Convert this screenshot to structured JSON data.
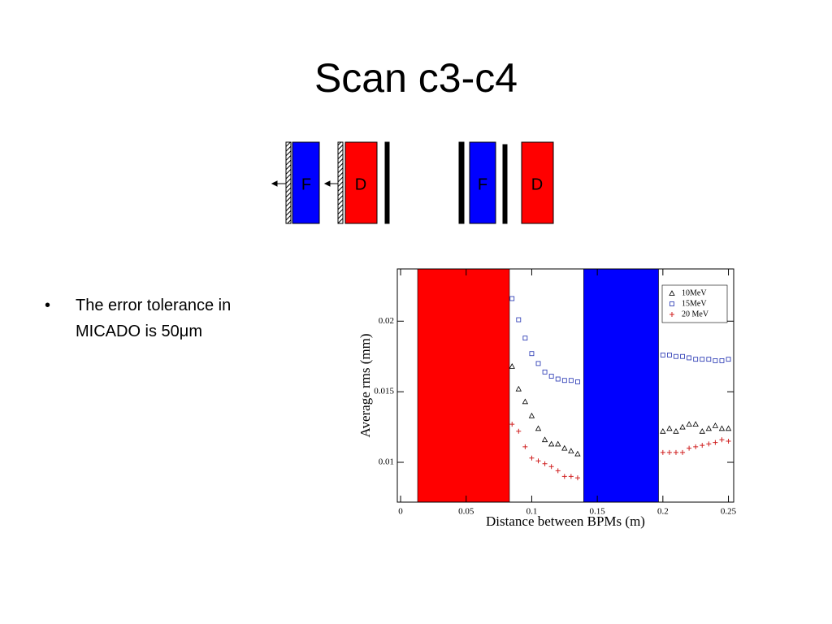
{
  "title": "Scan c3-c4",
  "diagram": {
    "labels": [
      "F",
      "D",
      "F",
      "D"
    ]
  },
  "bullets": [
    "The error tolerance in MICADO is 50μm"
  ],
  "chart_data": {
    "type": "scatter",
    "xlabel": "Distance between BPMs (m)",
    "ylabel": "Average rms (mm)",
    "xlim": [
      -0.0025,
      0.254
    ],
    "ylim": [
      0.00718,
      0.0237
    ],
    "xticks": [
      0,
      0.05,
      0.1,
      0.15,
      0.2,
      0.25
    ],
    "yticks": [
      0.01,
      0.015,
      0.02
    ],
    "legend": "upper right",
    "bands": [
      {
        "x": [
          0.013,
          0.083
        ],
        "color": "#ff0000"
      },
      {
        "x": [
          0.1396,
          0.1967
        ],
        "color": "#0000ff"
      }
    ],
    "x": [
      0.085,
      0.09,
      0.095,
      0.1,
      0.105,
      0.11,
      0.115,
      0.12,
      0.125,
      0.13,
      0.135,
      0.2,
      0.205,
      0.21,
      0.215,
      0.22,
      0.225,
      0.23,
      0.235,
      0.24,
      0.245,
      0.25
    ],
    "series": [
      {
        "name": "10MeV",
        "color": "#000000",
        "marker": "triangle",
        "values": [
          0.0168,
          0.0152,
          0.0143,
          0.0133,
          0.0124,
          0.0116,
          0.0113,
          0.0113,
          0.011,
          0.0108,
          0.0106,
          0.0122,
          0.0124,
          0.0122,
          0.0125,
          0.0127,
          0.0127,
          0.0122,
          0.0124,
          0.0126,
          0.0124,
          0.0124
        ]
      },
      {
        "name": "15MeV",
        "color": "#1f2fb0",
        "marker": "square",
        "values": [
          0.0216,
          0.0201,
          0.0188,
          0.0177,
          0.017,
          0.0164,
          0.0161,
          0.0159,
          0.0158,
          0.0158,
          0.0157,
          0.0176,
          0.0176,
          0.0175,
          0.0175,
          0.0174,
          0.0173,
          0.0173,
          0.0173,
          0.0172,
          0.0172,
          0.0173
        ]
      },
      {
        "name": "20 MeV",
        "color": "#d02020",
        "marker": "plus",
        "values": [
          0.0127,
          0.0122,
          0.0111,
          0.0103,
          0.0101,
          0.0099,
          0.0097,
          0.0094,
          0.009,
          0.009,
          0.0089,
          0.0107,
          0.0107,
          0.0107,
          0.0107,
          0.011,
          0.0111,
          0.0112,
          0.0113,
          0.0114,
          0.0116,
          0.0115
        ]
      }
    ]
  }
}
